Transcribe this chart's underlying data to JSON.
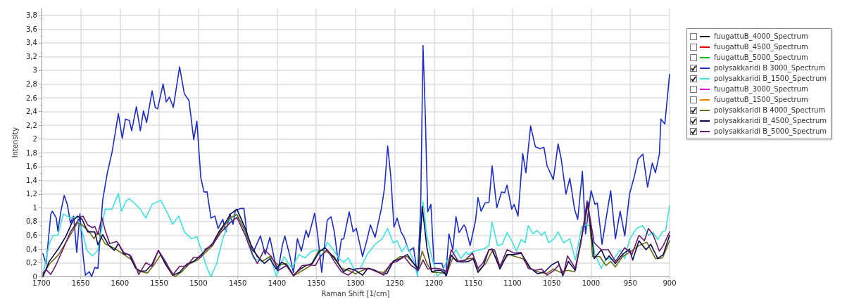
{
  "chart_data": {
    "type": "line",
    "xlabel": "Raman Shift [1/cm]",
    "ylabel": "Intensity",
    "xlim": [
      1700,
      900
    ],
    "xticks": [
      1700,
      1650,
      1600,
      1550,
      1500,
      1450,
      1400,
      1350,
      1300,
      1250,
      1200,
      1150,
      1100,
      1050,
      1000,
      950,
      900
    ],
    "ylim": [
      0,
      3.9
    ],
    "yticks": [
      0,
      {
        "value": 0.2,
        "label": "0,2"
      },
      {
        "value": 0.4,
        "label": "0,4"
      },
      {
        "value": 0.6,
        "label": "0,6"
      },
      {
        "value": 0.8,
        "label": "0,8"
      },
      1,
      {
        "value": 1.2,
        "label": "1,2"
      },
      {
        "value": 1.4,
        "label": "1,4"
      },
      {
        "value": 1.6,
        "label": "1,6"
      },
      {
        "value": 1.8,
        "label": "1,8"
      },
      2,
      {
        "value": 2.2,
        "label": "2,2"
      },
      {
        "value": 2.4,
        "label": "2,4"
      },
      {
        "value": 2.6,
        "label": "2,6"
      },
      {
        "value": 2.8,
        "label": "2,8"
      },
      3,
      {
        "value": 3.2,
        "label": "3,2"
      },
      {
        "value": 3.4,
        "label": "3,4"
      },
      {
        "value": 3.6,
        "label": "3,6"
      },
      {
        "value": 3.8,
        "label": "3,8"
      }
    ],
    "grid": true,
    "legend": "right",
    "marker": "none",
    "line_style": "solid",
    "series": [
      {
        "name": "fuugattuB_4000_Spectrum",
        "color": "#000000"
      },
      {
        "name": "fuugattuB_4500_Spectrum",
        "color": "#e00000"
      },
      {
        "name": "fuugattuB_5000_Spectrum",
        "color": "#00c000"
      },
      {
        "name": "polysakkaridi B 3000_Spectrum",
        "color": "#1c2cc4",
        "x": [
          1698,
          1694,
          1688,
          1686,
          1681,
          1679,
          1675,
          1671,
          1667,
          1663,
          1659,
          1655,
          1651,
          1647,
          1644,
          1639,
          1636,
          1632,
          1628,
          1622,
          1616,
          1610,
          1602,
          1597,
          1593,
          1588,
          1585,
          1579,
          1574,
          1570,
          1566,
          1559,
          1555,
          1552,
          1545,
          1541,
          1537,
          1532,
          1524,
          1518,
          1512,
          1506,
          1502,
          1497,
          1493,
          1489,
          1484,
          1479,
          1475,
          1469,
          1465,
          1460,
          1456,
          1453,
          1446,
          1442,
          1437,
          1430,
          1421,
          1415,
          1409,
          1404,
          1399,
          1393,
          1390,
          1384,
          1379,
          1374,
          1369,
          1363,
          1360,
          1352,
          1348,
          1343,
          1336,
          1331,
          1327,
          1322,
          1318,
          1315,
          1308,
          1303,
          1299,
          1291,
          1285,
          1281,
          1275,
          1267,
          1263,
          1259,
          1255,
          1251,
          1247,
          1242,
          1238,
          1232,
          1226,
          1221,
          1217,
          1214,
          1211,
          1208,
          1204,
          1200,
          1196,
          1190,
          1185,
          1181,
          1176,
          1172,
          1168,
          1162,
          1160,
          1154,
          1147,
          1144,
          1140,
          1135,
          1130,
          1126,
          1120,
          1114,
          1110,
          1107,
          1101,
          1098,
          1093,
          1087,
          1083,
          1077,
          1071,
          1065,
          1060,
          1056,
          1048,
          1042,
          1038,
          1032,
          1027,
          1021,
          1017,
          1011,
          1007,
          1000,
          995,
          992,
          986,
          981,
          975,
          969,
          963,
          957,
          951,
          945,
          940,
          934,
          928,
          922,
          918,
          913,
          911,
          906,
          900
        ],
        "values": [
          0.33,
          0.18,
          0.91,
          0.95,
          0.85,
          0.66,
          0.96,
          1.18,
          1.05,
          0.78,
          0.88,
          0.35,
          0.91,
          0.32,
          0.02,
          0.07,
          0.0,
          0.13,
          0.12,
          1.11,
          1.51,
          1.81,
          2.37,
          2.01,
          2.29,
          2.27,
          2.12,
          2.47,
          2.12,
          2.41,
          2.24,
          2.7,
          2.46,
          2.44,
          2.8,
          2.54,
          2.61,
          2.46,
          3.05,
          2.66,
          2.56,
          1.99,
          2.26,
          1.44,
          1.23,
          1.23,
          0.85,
          0.88,
          0.7,
          0.83,
          0.65,
          0.91,
          0.76,
          0.96,
          0.99,
          0.99,
          0.49,
          0.36,
          0.59,
          0.32,
          0.57,
          0.29,
          0.06,
          0.46,
          0.59,
          0.32,
          0.06,
          0.55,
          0.37,
          0.67,
          0.57,
          0.92,
          0.59,
          0.06,
          0.82,
          0.87,
          0.65,
          0.22,
          0.54,
          0.55,
          0.94,
          0.65,
          0.7,
          0.29,
          0.55,
          0.75,
          0.57,
          0.99,
          1.29,
          1.9,
          1.45,
          0.72,
          0.85,
          0.65,
          0.57,
          0.37,
          0.42,
          0.01,
          0.99,
          3.36,
          2.32,
          0.94,
          1.05,
          0.19,
          0.19,
          0.19,
          0.01,
          0.62,
          0.39,
          0.87,
          0.64,
          0.75,
          0.72,
          0.45,
          0.82,
          1.15,
          0.95,
          1.07,
          1.08,
          1.61,
          1.0,
          1.23,
          1.22,
          1.33,
          0.98,
          1.05,
          0.88,
          1.79,
          1.51,
          2.19,
          1.89,
          1.86,
          1.88,
          1.61,
          1.41,
          1.93,
          1.71,
          1.2,
          1.43,
          0.98,
          0.83,
          1.53,
          0.62,
          1.25,
          1.05,
          1.07,
          0.47,
          0.83,
          1.25,
          0.55,
          0.95,
          0.59,
          1.2,
          1.45,
          1.71,
          1.78,
          1.3,
          1.65,
          1.51,
          1.78,
          2.29,
          2.22,
          2.94
        ]
      },
      {
        "name": "polysakkaridi B_1500_Spectrum",
        "color": "#40e0e0",
        "x": [
          1698,
          1690,
          1685,
          1679,
          1672,
          1663,
          1654,
          1647,
          1642,
          1635,
          1628,
          1619,
          1610,
          1602,
          1598,
          1592,
          1588,
          1580,
          1574,
          1567,
          1559,
          1548,
          1539,
          1533,
          1525,
          1518,
          1509,
          1502,
          1496,
          1490,
          1484,
          1477,
          1469,
          1459,
          1451,
          1443,
          1434,
          1430,
          1419,
          1409,
          1401,
          1391,
          1381,
          1372,
          1364,
          1357,
          1349,
          1343,
          1336,
          1328,
          1321,
          1315,
          1309,
          1302,
          1294,
          1285,
          1275,
          1266,
          1259,
          1252,
          1247,
          1241,
          1235,
          1227,
          1221,
          1214,
          1209,
          1203,
          1196,
          1190,
          1184,
          1176,
          1172,
          1166,
          1159,
          1157,
          1149,
          1137,
          1130,
          1126,
          1119,
          1113,
          1107,
          1101,
          1095,
          1089,
          1084,
          1080,
          1074,
          1069,
          1063,
          1059,
          1054,
          1047,
          1042,
          1035,
          1027,
          1020,
          1012,
          1008,
          1001,
          995,
          987,
          980,
          972,
          963,
          957,
          951,
          942,
          934,
          927,
          921,
          915,
          909,
          905,
          900
        ],
        "values": [
          0.02,
          0.48,
          0.6,
          0.6,
          0.91,
          0.85,
          0.86,
          0.61,
          0.38,
          0.3,
          0.38,
          0.98,
          0.98,
          1.21,
          0.95,
          1.1,
          1.13,
          1.05,
          0.98,
          0.85,
          1.05,
          1.11,
          0.91,
          0.76,
          0.88,
          0.65,
          0.55,
          0.58,
          0.38,
          0.15,
          0.0,
          0.18,
          0.55,
          0.85,
          0.91,
          0.72,
          0.39,
          0.26,
          0.22,
          0.29,
          0.01,
          0.29,
          0.12,
          0.32,
          0.27,
          0.36,
          0.39,
          0.29,
          0.5,
          0.39,
          0.26,
          0.21,
          0.27,
          0.11,
          0.12,
          0.32,
          0.47,
          0.55,
          0.7,
          0.49,
          0.52,
          0.36,
          0.46,
          0.26,
          0.01,
          1.09,
          0.59,
          0.29,
          0.01,
          0.06,
          0.22,
          0.32,
          0.39,
          0.26,
          0.36,
          0.32,
          0.37,
          0.4,
          0.45,
          0.79,
          0.45,
          0.47,
          0.64,
          0.52,
          0.37,
          0.54,
          0.49,
          0.74,
          0.62,
          0.67,
          0.6,
          0.65,
          0.49,
          0.55,
          0.65,
          0.49,
          0.55,
          0.24,
          0.72,
          0.75,
          0.74,
          0.32,
          0.12,
          0.27,
          0.24,
          0.39,
          0.26,
          0.54,
          0.7,
          0.74,
          0.6,
          0.64,
          0.54,
          0.65,
          0.67,
          1.03
        ]
      },
      {
        "name": "fuugattuB_3000_Spectrum",
        "color": "#e000e0"
      },
      {
        "name": "fuugattuB_1500_Spectrum",
        "color": "#f08000"
      },
      {
        "name": "polysakkaridi B 4000_Spectrum",
        "color": "#6b6b10",
        "x": [
          1698,
          1690,
          1678,
          1666,
          1654,
          1648,
          1639,
          1633,
          1628,
          1619,
          1607,
          1595,
          1586,
          1577,
          1565,
          1556,
          1548,
          1539,
          1530,
          1521,
          1512,
          1500,
          1491,
          1482,
          1471,
          1459,
          1451,
          1440,
          1431,
          1419,
          1409,
          1398,
          1388,
          1379,
          1367,
          1357,
          1346,
          1337,
          1327,
          1318,
          1309,
          1300,
          1291,
          1282,
          1273,
          1264,
          1252,
          1243,
          1234,
          1226,
          1220,
          1215,
          1209,
          1202,
          1193,
          1184,
          1176,
          1166,
          1156,
          1149,
          1143,
          1134,
          1126,
          1116,
          1105,
          1096,
          1087,
          1077,
          1068,
          1057,
          1048,
          1039,
          1030,
          1021,
          1013,
          1004,
          998,
          989,
          981,
          975,
          969,
          960,
          951,
          939,
          929,
          918,
          909,
          900
        ],
        "values": [
          0.02,
          0.18,
          0.32,
          0.55,
          0.78,
          0.75,
          0.65,
          0.55,
          0.65,
          0.48,
          0.41,
          0.32,
          0.25,
          0.08,
          0.05,
          0.18,
          0.32,
          0.15,
          0.0,
          0.07,
          0.18,
          0.25,
          0.35,
          0.45,
          0.68,
          0.86,
          0.9,
          0.65,
          0.39,
          0.22,
          0.29,
          0.16,
          0.19,
          0.01,
          0.09,
          0.16,
          0.39,
          0.36,
          0.29,
          0.12,
          0.09,
          0.04,
          0.09,
          0.12,
          0.07,
          0.06,
          0.22,
          0.29,
          0.29,
          0.19,
          0.12,
          0.37,
          0.19,
          0.06,
          0.06,
          0.04,
          0.27,
          0.21,
          0.26,
          0.27,
          0.09,
          0.19,
          0.37,
          0.16,
          0.32,
          0.29,
          0.26,
          0.11,
          0.07,
          0.04,
          0.11,
          0.06,
          0.09,
          0.07,
          0.49,
          1.05,
          0.29,
          0.29,
          0.16,
          0.22,
          0.14,
          0.29,
          0.35,
          0.45,
          0.5,
          0.26,
          0.27,
          0.52
        ]
      },
      {
        "name": "polysakkaridi B_4500_Spectrum",
        "color": "#0a0a50",
        "x": [
          1698,
          1690,
          1678,
          1669,
          1660,
          1654,
          1648,
          1641,
          1632,
          1628,
          1622,
          1614,
          1607,
          1602,
          1595,
          1588,
          1580,
          1574,
          1567,
          1559,
          1551,
          1542,
          1533,
          1524,
          1515,
          1506,
          1500,
          1491,
          1482,
          1474,
          1466,
          1459,
          1451,
          1440,
          1433,
          1425,
          1416,
          1409,
          1401,
          1394,
          1387,
          1379,
          1370,
          1363,
          1355,
          1346,
          1339,
          1331,
          1324,
          1315,
          1309,
          1300,
          1291,
          1284,
          1275,
          1267,
          1260,
          1252,
          1243,
          1234,
          1226,
          1220,
          1215,
          1209,
          1203,
          1196,
          1191,
          1184,
          1178,
          1171,
          1163,
          1156,
          1150,
          1144,
          1137,
          1130,
          1126,
          1116,
          1107,
          1098,
          1089,
          1077,
          1068,
          1059,
          1050,
          1042,
          1036,
          1029,
          1020,
          1013,
          1004,
          996,
          987,
          981,
          977,
          969,
          960,
          951,
          947,
          939,
          930,
          924,
          915,
          908,
          900
        ],
        "values": [
          0.0,
          0.22,
          0.41,
          0.58,
          0.81,
          0.88,
          0.83,
          0.65,
          0.65,
          0.46,
          0.61,
          0.45,
          0.38,
          0.48,
          0.33,
          0.32,
          0.12,
          0.08,
          0.08,
          0.18,
          0.38,
          0.18,
          0.02,
          0.06,
          0.18,
          0.22,
          0.28,
          0.38,
          0.48,
          0.65,
          0.78,
          0.91,
          0.98,
          0.69,
          0.46,
          0.29,
          0.19,
          0.26,
          0.11,
          0.21,
          0.16,
          0.02,
          0.11,
          0.16,
          0.19,
          0.36,
          0.42,
          0.32,
          0.22,
          0.07,
          0.12,
          0.09,
          0.02,
          0.12,
          0.09,
          0.04,
          0.04,
          0.22,
          0.26,
          0.32,
          0.19,
          0.11,
          1.02,
          0.42,
          0.07,
          0.09,
          0.09,
          0.02,
          0.31,
          0.22,
          0.21,
          0.22,
          0.26,
          0.06,
          0.16,
          0.39,
          0.4,
          0.11,
          0.32,
          0.32,
          0.34,
          0.12,
          0.04,
          0.07,
          0.17,
          0.22,
          0.01,
          0.22,
          0.09,
          0.52,
          1.08,
          0.26,
          0.39,
          0.24,
          0.3,
          0.19,
          0.32,
          0.4,
          0.24,
          0.52,
          0.39,
          0.47,
          0.26,
          0.32,
          0.6
        ]
      },
      {
        "name": "polysakkaridi B_5000_Spectrum",
        "color": "#6a1a6a",
        "x": [
          1698,
          1694,
          1688,
          1681,
          1672,
          1663,
          1657,
          1651,
          1647,
          1641,
          1635,
          1632,
          1628,
          1623,
          1619,
          1613,
          1604,
          1595,
          1586,
          1580,
          1576,
          1567,
          1559,
          1551,
          1542,
          1533,
          1524,
          1515,
          1506,
          1497,
          1491,
          1482,
          1471,
          1460,
          1451,
          1440,
          1431,
          1425,
          1416,
          1407,
          1398,
          1388,
          1379,
          1368,
          1360,
          1351,
          1345,
          1336,
          1327,
          1318,
          1309,
          1300,
          1291,
          1282,
          1273,
          1264,
          1255,
          1247,
          1238,
          1229,
          1220,
          1214,
          1208,
          1199,
          1191,
          1184,
          1178,
          1169,
          1160,
          1153,
          1151,
          1144,
          1138,
          1130,
          1123,
          1116,
          1107,
          1098,
          1089,
          1080,
          1071,
          1063,
          1056,
          1047,
          1041,
          1035,
          1030,
          1020,
          1013,
          1005,
          996,
          987,
          978,
          969,
          957,
          948,
          939,
          932,
          927,
          921,
          913,
          908,
          900
        ],
        "values": [
          0.05,
          0.1,
          0.03,
          0.18,
          0.41,
          0.65,
          0.75,
          0.86,
          0.88,
          0.75,
          0.71,
          0.73,
          0.61,
          0.86,
          0.68,
          0.48,
          0.51,
          0.35,
          0.3,
          0.15,
          0.03,
          0.2,
          0.15,
          0.38,
          0.22,
          0.02,
          0.15,
          0.15,
          0.28,
          0.28,
          0.4,
          0.46,
          0.65,
          0.78,
          0.86,
          0.59,
          0.32,
          0.19,
          0.39,
          0.29,
          0.09,
          0.16,
          0.01,
          0.16,
          0.17,
          0.16,
          0.29,
          0.39,
          0.22,
          0.07,
          0.02,
          0.11,
          0.12,
          0.11,
          0.07,
          0.02,
          0.19,
          0.22,
          0.29,
          0.16,
          0.09,
          0.24,
          0.11,
          0.12,
          0.11,
          0.07,
          0.39,
          0.22,
          0.24,
          0.32,
          0.34,
          0.12,
          0.19,
          0.39,
          0.39,
          0.14,
          0.39,
          0.34,
          0.35,
          0.12,
          0.09,
          0.11,
          0.02,
          0.09,
          0.17,
          0.04,
          0.3,
          0.12,
          0.49,
          1.1,
          0.49,
          0.39,
          0.39,
          0.22,
          0.42,
          0.32,
          0.6,
          0.52,
          0.7,
          0.61,
          0.37,
          0.45,
          0.65
        ]
      }
    ]
  }
}
